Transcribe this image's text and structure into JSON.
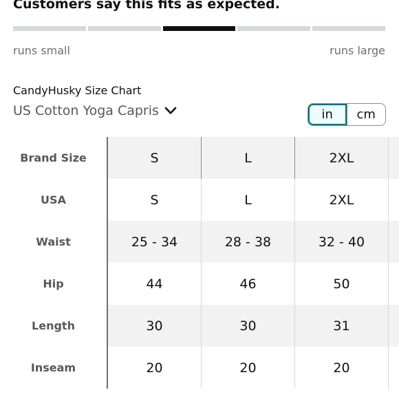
{
  "fit": {
    "headline": "Customers say this fits as expected.",
    "segments": 5,
    "selected_segment": 3,
    "min_label": "runs small",
    "max_label": "runs large"
  },
  "chart": {
    "brand_title": "CandyHusky Size Chart",
    "product_name": "US Cotton Yoga Capris",
    "product_chevron_icon": "chevron-down-icon"
  },
  "units": {
    "options": [
      "in",
      "cm"
    ],
    "selected": "in"
  },
  "table": {
    "row_headers": [
      "Brand Size",
      "USA",
      "Waist",
      "Hip",
      "Length",
      "Inseam"
    ],
    "rows": [
      [
        "S",
        "L",
        "2XL"
      ],
      [
        "S",
        "L",
        "2XL"
      ],
      [
        "25 - 34",
        "28 - 38",
        "32 - 40"
      ],
      [
        "44",
        "46",
        "50"
      ],
      [
        "30",
        "30",
        "31"
      ],
      [
        "20",
        "20",
        "20"
      ]
    ]
  },
  "colors": {
    "fit_selected": "#111111",
    "fit_unselected": "#d5d9d9",
    "unit_selected_border": "#007185",
    "header_row_bg": "#e3e6e6",
    "shaded_row_bg": "#f2f2f2"
  }
}
